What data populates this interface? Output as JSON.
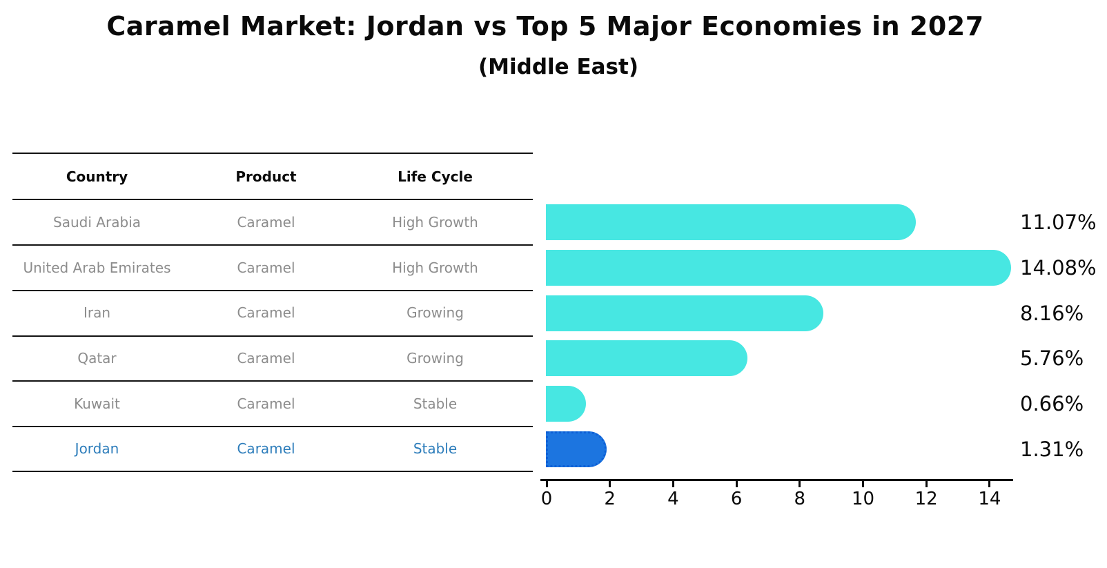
{
  "title": "Caramel Market: Jordan vs Top 5 Major Economies in 2027",
  "subtitle": "(Middle East)",
  "table": {
    "headers": {
      "country": "Country",
      "product": "Product",
      "life_cycle": "Life Cycle"
    },
    "rows": [
      {
        "country": "Saudi Arabia",
        "product": "Caramel",
        "life_cycle": "High Growth",
        "highlight": false
      },
      {
        "country": "United Arab Emirates",
        "product": "Caramel",
        "life_cycle": "High Growth",
        "highlight": false
      },
      {
        "country": "Iran",
        "product": "Caramel",
        "life_cycle": "Growing",
        "highlight": false
      },
      {
        "country": "Qatar",
        "product": "Caramel",
        "life_cycle": "Growing",
        "highlight": false
      },
      {
        "country": "Kuwait",
        "product": "Caramel",
        "life_cycle": "Stable",
        "highlight": false
      },
      {
        "country": "Jordan",
        "product": "Caramel",
        "life_cycle": "Stable",
        "highlight": true
      }
    ]
  },
  "chart_data": {
    "type": "bar",
    "orientation": "horizontal",
    "title": "Caramel Market: Jordan vs Top 5 Major Economies in 2027 (Middle East)",
    "categories": [
      "Saudi Arabia",
      "United Arab Emirates",
      "Iran",
      "Qatar",
      "Kuwait",
      "Jordan"
    ],
    "values": [
      11.07,
      14.08,
      8.16,
      5.76,
      0.66,
      1.31
    ],
    "value_labels": [
      "11.07%",
      "14.08%",
      "8.16%",
      "5.76%",
      "0.66%",
      "1.31%"
    ],
    "unit": "%",
    "x_ticks": [
      0,
      2,
      4,
      6,
      8,
      10,
      12,
      14
    ],
    "x_tick_labels": [
      "0",
      "2",
      "4",
      "6",
      "8",
      "10",
      "12",
      "14"
    ],
    "xlim": [
      0,
      14.75
    ],
    "grid": false,
    "legend": "none",
    "bar_color": "#47e7e2",
    "highlight_color": "#1c75e0",
    "highlight_border_color": "#0d5fd6",
    "highlight_index": 5,
    "highlight_category": "Jordan"
  },
  "colors": {
    "row_text": "#8c8c8c",
    "highlight_text": "#2d7dbb",
    "axis": "#0a0a0a",
    "table_line": "#121212"
  }
}
